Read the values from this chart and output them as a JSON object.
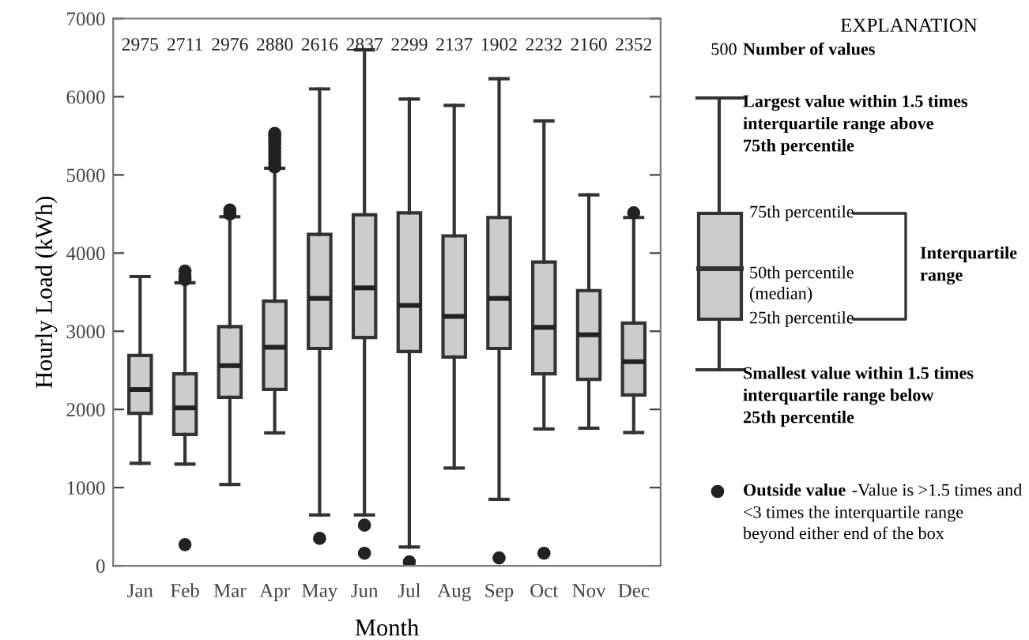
{
  "chart_data": {
    "type": "box",
    "xlabel": "Month",
    "ylabel": "Hourly Load (kWh)",
    "categories": [
      "Jan",
      "Feb",
      "Mar",
      "Apr",
      "May",
      "Jun",
      "Jul",
      "Aug",
      "Sep",
      "Oct",
      "Nov",
      "Dec"
    ],
    "color": "#cccccc",
    "ylim": [
      0,
      7000
    ],
    "yticks": [
      0,
      1000,
      2000,
      3000,
      4000,
      5000,
      6000,
      7000
    ],
    "grid": false,
    "boxes": [
      {
        "low": 1310,
        "q1": 1950,
        "median": 2255,
        "q3": 2690,
        "high": 3700
      },
      {
        "low": 1300,
        "q1": 1680,
        "median": 2020,
        "q3": 2455,
        "high": 3620,
        "outliers": [
          270,
          3660,
          3700,
          3770
        ]
      },
      {
        "low": 1040,
        "q1": 2155,
        "median": 2560,
        "q3": 3060,
        "high": 4465,
        "outliers": [
          4500,
          4550
        ]
      },
      {
        "low": 1700,
        "q1": 2255,
        "median": 2795,
        "q3": 3385,
        "high": 5085,
        "outliers": [
          5100,
          5150,
          5200,
          5250,
          5300,
          5350,
          5400,
          5450,
          5500,
          5530
        ]
      },
      {
        "low": 650,
        "q1": 2780,
        "median": 3420,
        "q3": 4240,
        "high": 6100,
        "outliers": [
          350
        ]
      },
      {
        "low": 650,
        "q1": 2920,
        "median": 3555,
        "q3": 4490,
        "high": 6600,
        "outliers": [
          520,
          160
        ]
      },
      {
        "low": 240,
        "q1": 2740,
        "median": 3330,
        "q3": 4515,
        "high": 5970,
        "outliers": [
          50
        ]
      },
      {
        "low": 1250,
        "q1": 2670,
        "median": 3190,
        "q3": 4220,
        "high": 5890
      },
      {
        "low": 850,
        "q1": 2780,
        "median": 3420,
        "q3": 4455,
        "high": 6230,
        "outliers": [
          100
        ]
      },
      {
        "low": 1750,
        "q1": 2455,
        "median": 3050,
        "q3": 3885,
        "high": 5690,
        "outliers": [
          160
        ]
      },
      {
        "low": 1760,
        "q1": 2385,
        "median": 2955,
        "q3": 3520,
        "high": 4745
      },
      {
        "low": 1705,
        "q1": 2185,
        "median": 2610,
        "q3": 3105,
        "high": 4455,
        "outliers": [
          4515
        ]
      }
    ],
    "annotations": [
      "2975",
      "2711",
      "2976",
      "2880",
      "2616",
      "2837",
      "2299",
      "2137",
      "1902",
      "2232",
      "2160",
      "2352",
      "EXPLANATION",
      "500",
      "Number of values",
      "Largest value within 1.5 times\ninterquartile range above\n75th percentile",
      "75th percentile",
      "50th percentile\n(median)",
      "25th percentile",
      "Interquartile\nrange",
      "Smallest value within 1.5 times\ninterquartile range below\n25th percentile",
      "Outside value",
      "-Value is >1.5 times and\n<3 times the interquartile range\nbeyond either end of the box"
    ]
  }
}
